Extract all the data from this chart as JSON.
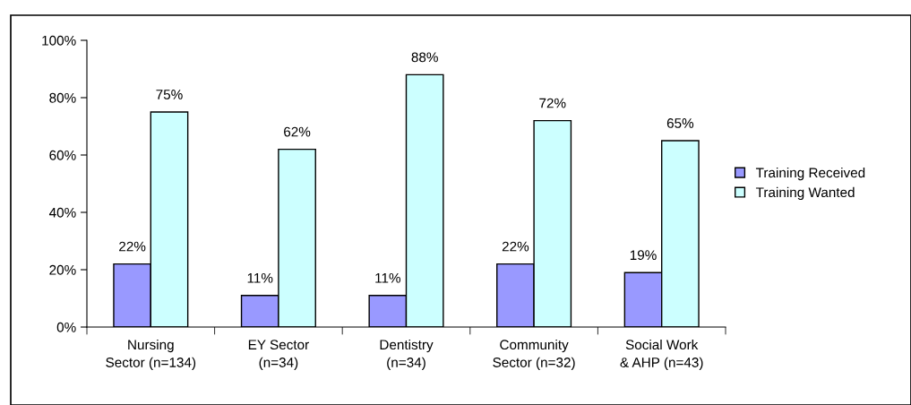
{
  "chart_data": {
    "type": "bar",
    "categories": [
      "Nursing\nSector (n=134)",
      "EY Sector\n(n=34)",
      "Dentistry\n(n=34)",
      "Community\nSector (n=32)",
      "Social Work\n& AHP (n=43)"
    ],
    "series": [
      {
        "name": "Training Received",
        "color": "#9999ff",
        "values": [
          22,
          11,
          11,
          22,
          19
        ],
        "value_labels": [
          "22%",
          "11%",
          "11%",
          "22%",
          "19%"
        ]
      },
      {
        "name": "Training Wanted",
        "color": "#ccffff",
        "values": [
          75,
          62,
          88,
          72,
          65
        ],
        "value_labels": [
          "75%",
          "62%",
          "88%",
          "72%",
          "65%"
        ]
      }
    ],
    "ylim": [
      0,
      100
    ],
    "yticks": [
      {
        "value": 0,
        "label": "0%"
      },
      {
        "value": 20,
        "label": "20%"
      },
      {
        "value": 40,
        "label": "40%"
      },
      {
        "value": 60,
        "label": "60%"
      },
      {
        "value": 80,
        "label": "80%"
      },
      {
        "value": 100,
        "label": "100%"
      }
    ],
    "legend": "right",
    "grid": false
  }
}
